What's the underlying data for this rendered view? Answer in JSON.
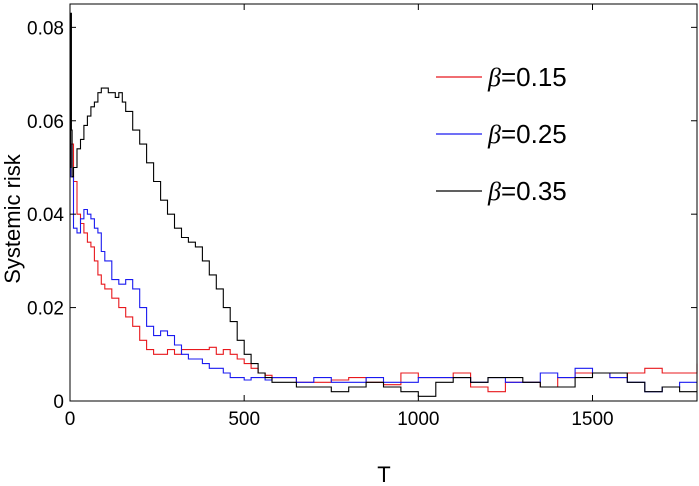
{
  "chart_data": {
    "type": "line",
    "title": "",
    "xlabel": "T",
    "ylabel": "Systemic risk",
    "xlim": [
      0,
      1800
    ],
    "ylim": [
      0,
      0.085
    ],
    "x_ticks": [
      0,
      500,
      1000,
      1500
    ],
    "x_tick_labels": [
      "0",
      "500",
      "1000",
      "1500"
    ],
    "y_ticks": [
      0,
      0.02,
      0.04,
      0.06,
      0.08
    ],
    "y_tick_labels": [
      "0",
      "0.02",
      "0.04",
      "0.06",
      "0.08"
    ],
    "grid": false,
    "legend_position": "top-right",
    "series": [
      {
        "name": "β=0.15",
        "legend_symbol": "β",
        "legend_value": "=0.15",
        "color": "#e8181d",
        "x": [
          0,
          2,
          10,
          20,
          30,
          40,
          50,
          60,
          70,
          80,
          90,
          100,
          120,
          140,
          160,
          180,
          200,
          220,
          240,
          260,
          280,
          300,
          320,
          340,
          360,
          380,
          400,
          420,
          440,
          460,
          480,
          500,
          520,
          540,
          560,
          580,
          600,
          650,
          700,
          750,
          800,
          850,
          900,
          950,
          1000,
          1050,
          1100,
          1150,
          1200,
          1250,
          1300,
          1350,
          1400,
          1450,
          1500,
          1550,
          1600,
          1650,
          1700,
          1750,
          1800
        ],
        "y": [
          0.05,
          0.055,
          0.047,
          0.04,
          0.038,
          0.036,
          0.034,
          0.033,
          0.03,
          0.027,
          0.025,
          0.024,
          0.022,
          0.02,
          0.018,
          0.016,
          0.013,
          0.011,
          0.01,
          0.01,
          0.011,
          0.01,
          0.011,
          0.011,
          0.011,
          0.011,
          0.0115,
          0.01,
          0.011,
          0.01,
          0.009,
          0.008,
          0.007,
          0.006,
          0.0055,
          0.005,
          0.005,
          0.004,
          0.004,
          0.0045,
          0.005,
          0.004,
          0.0035,
          0.006,
          0.005,
          0.005,
          0.006,
          0.003,
          0.002,
          0.004,
          0.004,
          0.003,
          0.005,
          0.006,
          0.006,
          0.005,
          0.006,
          0.007,
          0.006,
          0.006,
          0.008
        ]
      },
      {
        "name": "β=0.25",
        "legend_symbol": "β",
        "legend_value": "=0.25",
        "color": "#1a1af0",
        "x": [
          0,
          2,
          10,
          20,
          30,
          40,
          50,
          60,
          70,
          80,
          90,
          100,
          120,
          140,
          160,
          180,
          200,
          220,
          240,
          260,
          280,
          300,
          320,
          340,
          360,
          380,
          400,
          420,
          440,
          460,
          480,
          500,
          520,
          540,
          560,
          580,
          600,
          650,
          700,
          750,
          800,
          850,
          900,
          950,
          1000,
          1050,
          1100,
          1150,
          1200,
          1250,
          1300,
          1350,
          1400,
          1450,
          1500,
          1550,
          1600,
          1650,
          1700,
          1750,
          1800
        ],
        "y": [
          0.055,
          0.048,
          0.037,
          0.036,
          0.039,
          0.041,
          0.04,
          0.039,
          0.037,
          0.036,
          0.032,
          0.03,
          0.026,
          0.025,
          0.026,
          0.024,
          0.02,
          0.016,
          0.014,
          0.015,
          0.014,
          0.012,
          0.01,
          0.009,
          0.009,
          0.008,
          0.007,
          0.007,
          0.006,
          0.005,
          0.005,
          0.0045,
          0.005,
          0.005,
          0.0045,
          0.005,
          0.005,
          0.004,
          0.005,
          0.004,
          0.004,
          0.005,
          0.004,
          0.004,
          0.005,
          0.005,
          0.005,
          0.004,
          0.005,
          0.004,
          0.004,
          0.006,
          0.005,
          0.007,
          0.006,
          0.005,
          0.004,
          0.002,
          0.003,
          0.004,
          0.004
        ]
      },
      {
        "name": "β=0.35",
        "legend_symbol": "β",
        "legend_value": "=0.35",
        "color": "#000000",
        "x": [
          0,
          2,
          4,
          6,
          10,
          20,
          30,
          40,
          50,
          60,
          70,
          80,
          90,
          100,
          110,
          120,
          130,
          140,
          150,
          160,
          180,
          200,
          220,
          240,
          260,
          280,
          300,
          320,
          340,
          360,
          380,
          400,
          420,
          440,
          460,
          480,
          500,
          520,
          540,
          560,
          580,
          600,
          650,
          700,
          750,
          800,
          850,
          900,
          950,
          1000,
          1050,
          1100,
          1150,
          1200,
          1250,
          1300,
          1350,
          1400,
          1450,
          1500,
          1550,
          1600,
          1650,
          1700,
          1750,
          1800
        ],
        "y": [
          0.05,
          0.083,
          0.058,
          0.048,
          0.05,
          0.054,
          0.056,
          0.059,
          0.061,
          0.063,
          0.064,
          0.066,
          0.067,
          0.067,
          0.066,
          0.066,
          0.065,
          0.066,
          0.064,
          0.062,
          0.058,
          0.055,
          0.051,
          0.047,
          0.043,
          0.04,
          0.037,
          0.035,
          0.034,
          0.033,
          0.03,
          0.027,
          0.024,
          0.02,
          0.017,
          0.013,
          0.01,
          0.008,
          0.006,
          0.005,
          0.004,
          0.004,
          0.003,
          0.003,
          0.002,
          0.003,
          0.004,
          0.003,
          0.002,
          0.001,
          0.004,
          0.005,
          0.004,
          0.005,
          0.005,
          0.004,
          0.003,
          0.003,
          0.005,
          0.006,
          0.006,
          0.004,
          0.002,
          0.003,
          0.002,
          0.002
        ]
      }
    ]
  }
}
